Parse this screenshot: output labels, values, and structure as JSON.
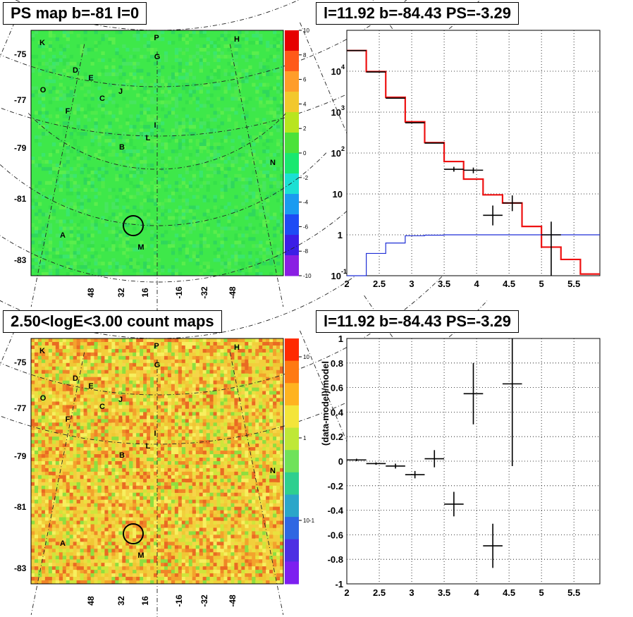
{
  "panels": {
    "ps_map": {
      "title": "PS map b=-81 l=0",
      "colorbar_ticks": [
        "10",
        "8",
        "6",
        "4",
        "2",
        "0",
        "-2",
        "-4",
        "-6",
        "-8",
        "-10"
      ],
      "colorbar_colors": [
        "#e60000",
        "#ff5a1a",
        "#ff9d2a",
        "#f2c82d",
        "#b8e51f",
        "#4be23a",
        "#19e86f",
        "#1be0d3",
        "#1a9bf0",
        "#1e4cf5",
        "#3c1ee6",
        "#8a1fe3"
      ],
      "background_color": "#3ee84a"
    },
    "count_map": {
      "title": "2.50<logE<3.00 count maps",
      "colorbar_ticks": [
        "10",
        "1",
        "10-1"
      ],
      "colorbar_colors": [
        "#ff2a00",
        "#ff7a12",
        "#ffb31f",
        "#f4e53a",
        "#bfe837",
        "#6fe25a",
        "#2ecf8f",
        "#2ba6c9",
        "#2f67e2",
        "#4d2fe3",
        "#7d1ff0"
      ],
      "palette": [
        "#e9e13f",
        "#f0c734",
        "#f3a32c",
        "#f08528",
        "#e96a23",
        "#cfe53b",
        "#8fde3f",
        "#f7ef5e",
        "#f6d548"
      ]
    },
    "map_labels": {
      "y_ticks": [
        "-75",
        "-77",
        "-79",
        "-81",
        "-83"
      ],
      "x_ticks": [
        "48",
        "32",
        "16",
        "-16",
        "-32",
        "-48"
      ],
      "sources": [
        {
          "label": "K"
        },
        {
          "label": "P"
        },
        {
          "label": "H"
        },
        {
          "label": "G"
        },
        {
          "label": "D"
        },
        {
          "label": "E"
        },
        {
          "label": "O"
        },
        {
          "label": "C"
        },
        {
          "label": "J"
        },
        {
          "label": "F"
        },
        {
          "label": "I"
        },
        {
          "label": "L"
        },
        {
          "label": "B"
        },
        {
          "label": "N"
        },
        {
          "label": "A"
        },
        {
          "label": "M"
        }
      ]
    },
    "spectrum_title": "l=11.92 b=-84.43 PS=-3.29",
    "residual_title": "l=11.92 b=-84.43 PS=-3.29"
  },
  "chart_data": [
    {
      "type": "line",
      "title": "l=11.92 b=-84.43 PS=-3.29",
      "xlabel": "",
      "ylabel": "",
      "xlim": [
        2,
        5.9
      ],
      "ylim": [
        0.1,
        100000
      ],
      "log_y": true,
      "grid": true,
      "x_ticks": [
        "2",
        "2.5",
        "3",
        "3.5",
        "4",
        "4.5",
        "5",
        "5.5"
      ],
      "y_ticks": [
        "10^{-1}",
        "1",
        "10",
        "10^{2}",
        "10^{3}",
        "10^{4}"
      ],
      "series": [
        {
          "color": "#ee1111",
          "step_edges": [
            2.0,
            2.3,
            2.6,
            2.9,
            3.2,
            3.5,
            3.8,
            4.1,
            4.4,
            4.7,
            5.0,
            5.3,
            5.6,
            5.9
          ],
          "values": [
            32000,
            9800,
            2300,
            580,
            180,
            62,
            23,
            9.5,
            6.0,
            1.6,
            0.5,
            0.25,
            0.11
          ]
        },
        {
          "color": "#1f2fd6",
          "step_edges": [
            2.0,
            2.3,
            2.6,
            2.9,
            3.2,
            3.5,
            3.8,
            4.1,
            4.4,
            4.7,
            5.0,
            5.3,
            5.6,
            5.9
          ],
          "values": [
            0.1,
            0.35,
            0.63,
            0.95,
            0.98,
            1,
            1,
            1,
            1,
            1,
            1,
            1,
            1
          ]
        },
        {
          "color": "#000000",
          "points": [
            {
              "x": 2.15,
              "y": 32000
            },
            {
              "x": 2.45,
              "y": 9600
            },
            {
              "x": 2.75,
              "y": 2200
            },
            {
              "x": 3.05,
              "y": 550
            },
            {
              "x": 3.35,
              "y": 175
            },
            {
              "x": 3.65,
              "y": 40,
              "yerr": [
                35,
                46
              ]
            },
            {
              "x": 3.95,
              "y": 38,
              "yerr": [
                32,
                44
              ]
            },
            {
              "x": 4.25,
              "y": 3,
              "yerr": [
                1.7,
                5.2
              ]
            },
            {
              "x": 4.55,
              "y": 6,
              "yerr": [
                3.8,
                9.2
              ]
            },
            {
              "x": 5.15,
              "y": 1,
              "yerr": [
                0.1,
                2.1
              ]
            }
          ],
          "xerr": 0.15
        }
      ]
    },
    {
      "type": "scatter",
      "title": "l=11.92 b=-84.43 PS=-3.29",
      "xlabel": "",
      "ylabel": "(data-model)/model",
      "xlim": [
        2,
        5.9
      ],
      "ylim": [
        -1,
        1
      ],
      "grid": true,
      "x_ticks": [
        "2",
        "2.5",
        "3",
        "3.5",
        "4",
        "4.5",
        "5",
        "5.5"
      ],
      "y_ticks": [
        "-1",
        "-0.8",
        "-0.6",
        "-0.4",
        "-0.2",
        "0",
        "0.2",
        "0.4",
        "0.6",
        "0.8",
        "1"
      ],
      "points": [
        {
          "x": 2.15,
          "y": 0.01,
          "yerr": 0.01
        },
        {
          "x": 2.45,
          "y": -0.02,
          "yerr": 0.01
        },
        {
          "x": 2.75,
          "y": -0.04,
          "yerr": 0.02
        },
        {
          "x": 3.05,
          "y": -0.11,
          "yerr": 0.03
        },
        {
          "x": 3.35,
          "y": 0.02,
          "yerr": 0.07
        },
        {
          "x": 3.65,
          "y": -0.35,
          "yerr": 0.1
        },
        {
          "x": 3.95,
          "y": 0.55,
          "yerr": 0.25
        },
        {
          "x": 4.25,
          "y": -0.69,
          "yerr": 0.18
        },
        {
          "x": 4.55,
          "y": 0.63,
          "yerr": 0.67
        }
      ],
      "xerr": 0.15
    }
  ]
}
